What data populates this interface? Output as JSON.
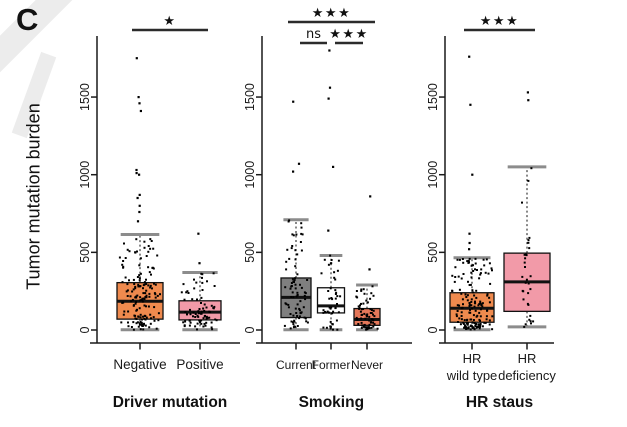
{
  "panel_label": "C",
  "ylabel": "Tumor mutation burden",
  "colors": {
    "orange": "#EF8A4E",
    "pink": "#F29AA8",
    "gray": "#7F7F7F",
    "white": "#FFFFFF",
    "salmon": "#E5785A",
    "axis": "#1a1a1a",
    "whisker_cap": "#8c8c8c",
    "sig_bar": "#2b2b2b",
    "watermark": "#ececec"
  },
  "chart_data": [
    {
      "type": "box",
      "title": "Driver mutation",
      "ylabel": "Tumor mutation burden",
      "ylim": [
        0,
        1800
      ],
      "yticks": [
        0,
        500,
        1000,
        1500
      ],
      "grid": false,
      "significance": [
        {
          "from": 0,
          "to": 1,
          "label": "★",
          "row": 0
        }
      ],
      "groups": [
        {
          "label": "Negative",
          "color": "#EF8A4E",
          "whisker_low": 2,
          "q1": 70,
          "median": 185,
          "q3": 305,
          "whisker_high": 615,
          "outliers": [
            700,
            760,
            800,
            850,
            870,
            1000,
            1010,
            1030,
            1410,
            1460,
            1500,
            1750
          ],
          "n_points": 155,
          "jitter": 0.85
        },
        {
          "label": "Positive",
          "color": "#F29AA8",
          "whisker_low": 2,
          "q1": 65,
          "median": 115,
          "q3": 188,
          "whisker_high": 370,
          "outliers": [
            430,
            620
          ],
          "n_points": 78,
          "jitter": 0.85
        }
      ]
    },
    {
      "type": "box",
      "title": "Smoking",
      "ylabel": "Tumor mutation burden",
      "ylim": [
        0,
        1800
      ],
      "yticks": [
        0,
        500,
        1000,
        1500
      ],
      "grid": false,
      "significance": [
        {
          "from": 0,
          "to": 2,
          "label": "★★★",
          "row": 0
        },
        {
          "from": 0,
          "to": 1,
          "label": "ns",
          "row": 1
        },
        {
          "from": 1,
          "to": 2,
          "label": "★★★",
          "row": 1
        }
      ],
      "groups": [
        {
          "label": "Current",
          "color": "#7F7F7F",
          "whisker_low": 2,
          "q1": 80,
          "median": 210,
          "q3": 335,
          "whisker_high": 710,
          "outliers": [
            1020,
            1070,
            1470
          ],
          "n_points": 82,
          "jitter": 0.8
        },
        {
          "label": "Former",
          "color": "#FFFFFF",
          "whisker_low": 2,
          "q1": 110,
          "median": 155,
          "q3": 272,
          "whisker_high": 480,
          "outliers": [
            640,
            1050,
            1490,
            1560,
            1800
          ],
          "n_points": 50,
          "jitter": 0.75
        },
        {
          "label": "Never",
          "color": "#E5785A",
          "whisker_low": 2,
          "q1": 30,
          "median": 68,
          "q3": 138,
          "whisker_high": 290,
          "outliers": [
            390,
            860
          ],
          "n_points": 68,
          "jitter": 0.85
        }
      ]
    },
    {
      "type": "box",
      "title": "HR staus",
      "ylabel": "Tumor mutation burden",
      "ylim": [
        0,
        1800
      ],
      "yticks": [
        0,
        500,
        1000,
        1500
      ],
      "grid": false,
      "significance": [
        {
          "from": 0,
          "to": 1,
          "label": "★★★",
          "row": 0
        }
      ],
      "groups": [
        {
          "label": "HR\nwild type",
          "color": "#EF8A4E",
          "whisker_low": 2,
          "q1": 50,
          "median": 140,
          "q3": 240,
          "whisker_high": 465,
          "outliers": [
            520,
            560,
            620,
            1000,
            1450,
            1760
          ],
          "n_points": 165,
          "jitter": 0.95
        },
        {
          "label": "HR\ndeficiency",
          "color": "#F29AA8",
          "whisker_low": 20,
          "q1": 120,
          "median": 310,
          "q3": 495,
          "whisker_high": 1050,
          "outliers": [
            1480,
            1530
          ],
          "n_points": 32,
          "jitter": 0.3
        }
      ]
    }
  ]
}
